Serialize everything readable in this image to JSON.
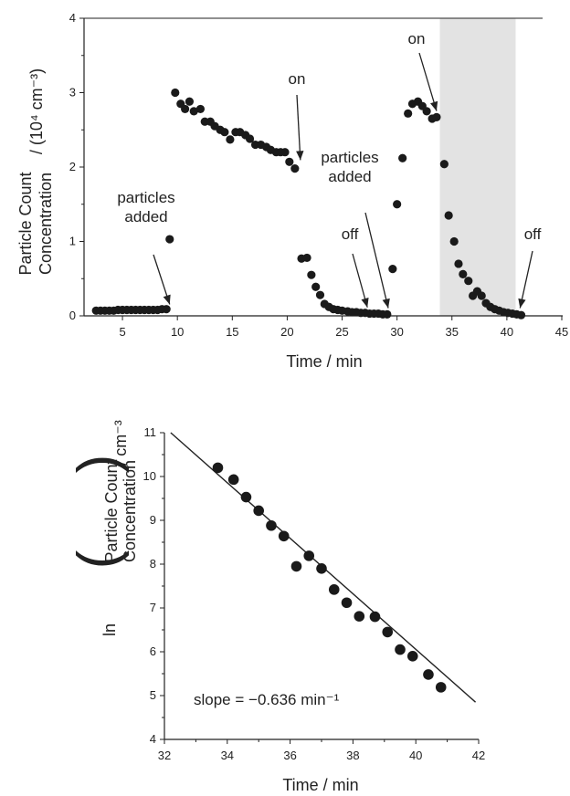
{
  "chart_data": [
    {
      "type": "scatter",
      "xlabel": "Time / min",
      "ylabel_line1": "Particle Count",
      "ylabel_line2": "Concentration",
      "ylabel_unit": "/ (10⁴ cm⁻³)",
      "xlim": [
        2,
        45
      ],
      "ylim": [
        0,
        4
      ],
      "xticks": [
        5,
        10,
        15,
        20,
        25,
        30,
        35,
        40,
        45
      ],
      "yticks": [
        0,
        1,
        2,
        3,
        4
      ],
      "shaded_region": {
        "x_start": 33.9,
        "x_end": 40.8,
        "color": "#e3e3e3"
      },
      "annotations": [
        {
          "id": "particles-added-1",
          "text_lines": [
            "particles",
            "added"
          ],
          "points_to": [
            9.3,
            0.08
          ]
        },
        {
          "id": "on-1",
          "text_lines": [
            "on"
          ],
          "points_to": [
            21.2,
            2.02
          ]
        },
        {
          "id": "off-1",
          "text_lines": [
            "off"
          ],
          "points_to": [
            27.3,
            0.04
          ]
        },
        {
          "id": "particles-added-2",
          "text_lines": [
            "particles",
            "added"
          ],
          "points_to": [
            29.2,
            0.03
          ]
        },
        {
          "id": "on-2",
          "text_lines": [
            "on"
          ],
          "points_to": [
            33.6,
            2.68
          ]
        },
        {
          "id": "off-2",
          "text_lines": [
            "off"
          ],
          "points_to": [
            41.2,
            0.03
          ]
        }
      ],
      "series": [
        {
          "color": "#1a1a1a",
          "points": [
            [
              2.6,
              0.07
            ],
            [
              3.0,
              0.07
            ],
            [
              3.4,
              0.07
            ],
            [
              3.8,
              0.07
            ],
            [
              4.2,
              0.07
            ],
            [
              4.6,
              0.08
            ],
            [
              5.0,
              0.08
            ],
            [
              5.4,
              0.08
            ],
            [
              5.8,
              0.08
            ],
            [
              6.2,
              0.08
            ],
            [
              6.6,
              0.08
            ],
            [
              7.0,
              0.08
            ],
            [
              7.4,
              0.08
            ],
            [
              7.8,
              0.08
            ],
            [
              8.2,
              0.08
            ],
            [
              8.6,
              0.09
            ],
            [
              9.0,
              0.09
            ],
            [
              9.3,
              1.03
            ],
            [
              9.8,
              3.0
            ],
            [
              10.3,
              2.85
            ],
            [
              10.7,
              2.78
            ],
            [
              11.1,
              2.88
            ],
            [
              11.5,
              2.75
            ],
            [
              12.1,
              2.78
            ],
            [
              12.5,
              2.61
            ],
            [
              13.0,
              2.61
            ],
            [
              13.4,
              2.55
            ],
            [
              13.9,
              2.5
            ],
            [
              14.3,
              2.47
            ],
            [
              14.8,
              2.37
            ],
            [
              15.3,
              2.47
            ],
            [
              15.7,
              2.47
            ],
            [
              16.2,
              2.43
            ],
            [
              16.6,
              2.38
            ],
            [
              17.1,
              2.3
            ],
            [
              17.6,
              2.3
            ],
            [
              18.1,
              2.27
            ],
            [
              18.5,
              2.23
            ],
            [
              19.0,
              2.2
            ],
            [
              19.4,
              2.2
            ],
            [
              19.8,
              2.2
            ],
            [
              20.2,
              2.07
            ],
            [
              20.7,
              1.98
            ],
            [
              21.3,
              0.77
            ],
            [
              21.8,
              0.78
            ],
            [
              22.2,
              0.55
            ],
            [
              22.6,
              0.39
            ],
            [
              23.0,
              0.28
            ],
            [
              23.4,
              0.16
            ],
            [
              23.8,
              0.12
            ],
            [
              24.2,
              0.09
            ],
            [
              24.6,
              0.08
            ],
            [
              25.0,
              0.07
            ],
            [
              25.5,
              0.06
            ],
            [
              25.9,
              0.05
            ],
            [
              26.3,
              0.05
            ],
            [
              26.7,
              0.04
            ],
            [
              27.1,
              0.04
            ],
            [
              27.5,
              0.03
            ],
            [
              27.9,
              0.03
            ],
            [
              28.3,
              0.03
            ],
            [
              28.7,
              0.02
            ],
            [
              29.1,
              0.02
            ],
            [
              29.6,
              0.63
            ],
            [
              30.0,
              1.5
            ],
            [
              30.5,
              2.12
            ],
            [
              31.0,
              2.72
            ],
            [
              31.4,
              2.85
            ],
            [
              31.9,
              2.88
            ],
            [
              32.3,
              2.82
            ],
            [
              32.7,
              2.75
            ],
            [
              33.2,
              2.65
            ],
            [
              33.6,
              2.67
            ],
            [
              34.3,
              2.04
            ],
            [
              34.7,
              1.35
            ],
            [
              35.2,
              1.0
            ],
            [
              35.6,
              0.7
            ],
            [
              36.0,
              0.56
            ],
            [
              36.5,
              0.47
            ],
            [
              36.9,
              0.27
            ],
            [
              37.3,
              0.33
            ],
            [
              37.7,
              0.27
            ],
            [
              38.1,
              0.17
            ],
            [
              38.5,
              0.12
            ],
            [
              38.9,
              0.09
            ],
            [
              39.3,
              0.07
            ],
            [
              39.7,
              0.05
            ],
            [
              40.1,
              0.04
            ],
            [
              40.5,
              0.03
            ],
            [
              40.9,
              0.02
            ],
            [
              41.3,
              0.01
            ]
          ]
        }
      ]
    },
    {
      "type": "scatter",
      "xlabel": "Time / min",
      "ylabel_prefix": "ln",
      "ylabel_line1": "Particle Count",
      "ylabel_line2": "Concentration",
      "ylabel_unit": "/ cm⁻³",
      "xlim": [
        32,
        42
      ],
      "ylim": [
        4,
        11
      ],
      "xticks": [
        32,
        34,
        36,
        38,
        40,
        42
      ],
      "yticks": [
        4,
        5,
        6,
        7,
        8,
        9,
        10,
        11
      ],
      "annotation": "slope  =  −0.636 min⁻¹",
      "fit_line": {
        "x": [
          32.2,
          41.9
        ],
        "y": [
          11.0,
          4.85
        ]
      },
      "series": [
        {
          "color": "#1a1a1a",
          "points": [
            [
              33.7,
              10.2
            ],
            [
              34.2,
              9.93
            ],
            [
              34.6,
              9.53
            ],
            [
              35.0,
              9.22
            ],
            [
              35.4,
              8.88
            ],
            [
              35.8,
              8.64
            ],
            [
              36.2,
              7.95
            ],
            [
              36.6,
              8.19
            ],
            [
              37.0,
              7.9
            ],
            [
              37.4,
              7.42
            ],
            [
              37.8,
              7.12
            ],
            [
              38.2,
              6.81
            ],
            [
              38.7,
              6.8
            ],
            [
              39.1,
              6.45
            ],
            [
              39.5,
              6.05
            ],
            [
              39.9,
              5.9
            ],
            [
              40.4,
              5.48
            ],
            [
              40.8,
              5.19
            ]
          ]
        }
      ]
    }
  ]
}
